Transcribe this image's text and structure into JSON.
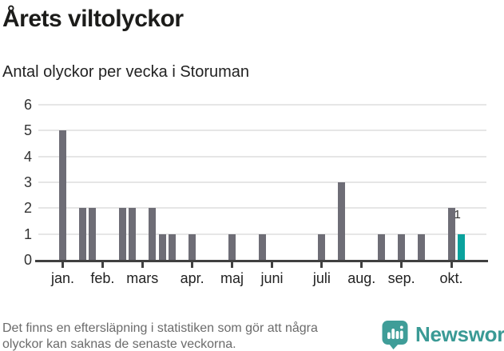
{
  "header": {
    "title": "Årets viltolyckor",
    "subtitle": "Antal olyckor per vecka i Storuman"
  },
  "chart_data": {
    "type": "bar",
    "title": "Årets viltolyckor",
    "subtitle": "Antal olyckor per vecka i Storuman",
    "x_unit": "vecka (weekly bars, jan.–okt.)",
    "values": [
      5,
      0,
      2,
      2,
      0,
      0,
      2,
      2,
      0,
      2,
      1,
      1,
      0,
      1,
      0,
      0,
      0,
      1,
      0,
      0,
      1,
      0,
      0,
      0,
      0,
      0,
      1,
      0,
      3,
      0,
      0,
      0,
      1,
      0,
      1,
      0,
      1,
      0,
      0,
      2,
      1
    ],
    "highlight_index": 40,
    "highlight_label": "1",
    "month_ticks": [
      {
        "label": "jan.",
        "week": 0
      },
      {
        "label": "feb.",
        "week": 4
      },
      {
        "label": "mars",
        "week": 8
      },
      {
        "label": "apr.",
        "week": 13
      },
      {
        "label": "maj",
        "week": 17
      },
      {
        "label": "juni",
        "week": 21
      },
      {
        "label": "juli",
        "week": 26
      },
      {
        "label": "aug.",
        "week": 30
      },
      {
        "label": "sep.",
        "week": 34
      },
      {
        "label": "okt.",
        "week": 39
      }
    ],
    "yticks": [
      0,
      1,
      2,
      3,
      4,
      5,
      6
    ],
    "ylim": [
      0,
      6
    ],
    "grid": "horizontal",
    "legend": "none",
    "colors": {
      "bar": "#6e6d76",
      "highlight": "#0aa29d",
      "axis": "#404040",
      "gridline": "#e6e6e6"
    }
  },
  "footer": {
    "note_line1": "Det finns en eftersläpning i statistiken som gör att några",
    "note_line2": "olyckor kan saknas de senaste veckorna.",
    "logo_text": "Newsworthy"
  }
}
